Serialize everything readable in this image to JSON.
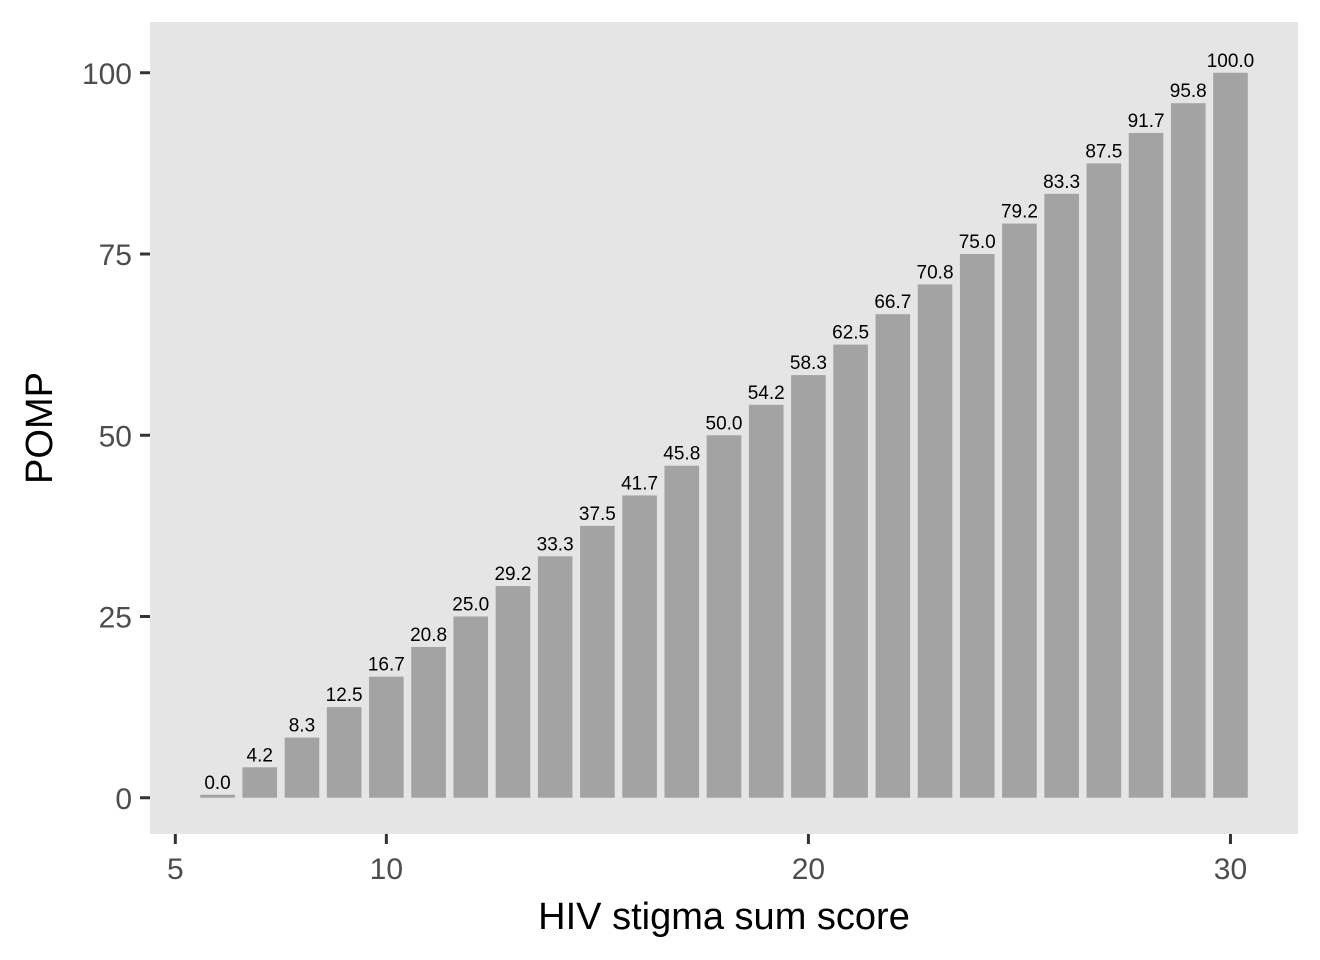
{
  "chart_data": {
    "type": "bar",
    "title": "",
    "xlabel": "HIV stigma sum score",
    "ylabel": "POMP",
    "x": [
      6,
      7,
      8,
      9,
      10,
      11,
      12,
      13,
      14,
      15,
      16,
      17,
      18,
      19,
      20,
      21,
      22,
      23,
      24,
      25,
      26,
      27,
      28,
      29,
      30
    ],
    "values": [
      0.0,
      4.2,
      8.3,
      12.5,
      16.7,
      20.8,
      25.0,
      29.2,
      33.3,
      37.5,
      41.7,
      45.8,
      50.0,
      54.2,
      58.3,
      62.5,
      66.7,
      70.8,
      75.0,
      79.2,
      83.3,
      87.5,
      91.7,
      95.8,
      100.0
    ],
    "data_labels": [
      "0.0",
      "4.2",
      "8.3",
      "12.5",
      "16.7",
      "20.8",
      "25.0",
      "29.2",
      "33.3",
      "37.5",
      "41.7",
      "45.8",
      "50.0",
      "54.2",
      "58.3",
      "62.5",
      "66.7",
      "70.8",
      "75.0",
      "79.2",
      "83.3",
      "87.5",
      "91.7",
      "95.8",
      "100.0"
    ],
    "x_ticks": [
      5,
      10,
      20,
      30
    ],
    "y_ticks": [
      0,
      25,
      50,
      75,
      100
    ],
    "xlim": [
      4.4,
      31.6
    ],
    "ylim": [
      -5,
      107
    ],
    "grid": false,
    "legend": "none",
    "colors": {
      "panel": "#e5e5e5",
      "bar": "#a3a3a3",
      "tick": "#333333"
    }
  }
}
